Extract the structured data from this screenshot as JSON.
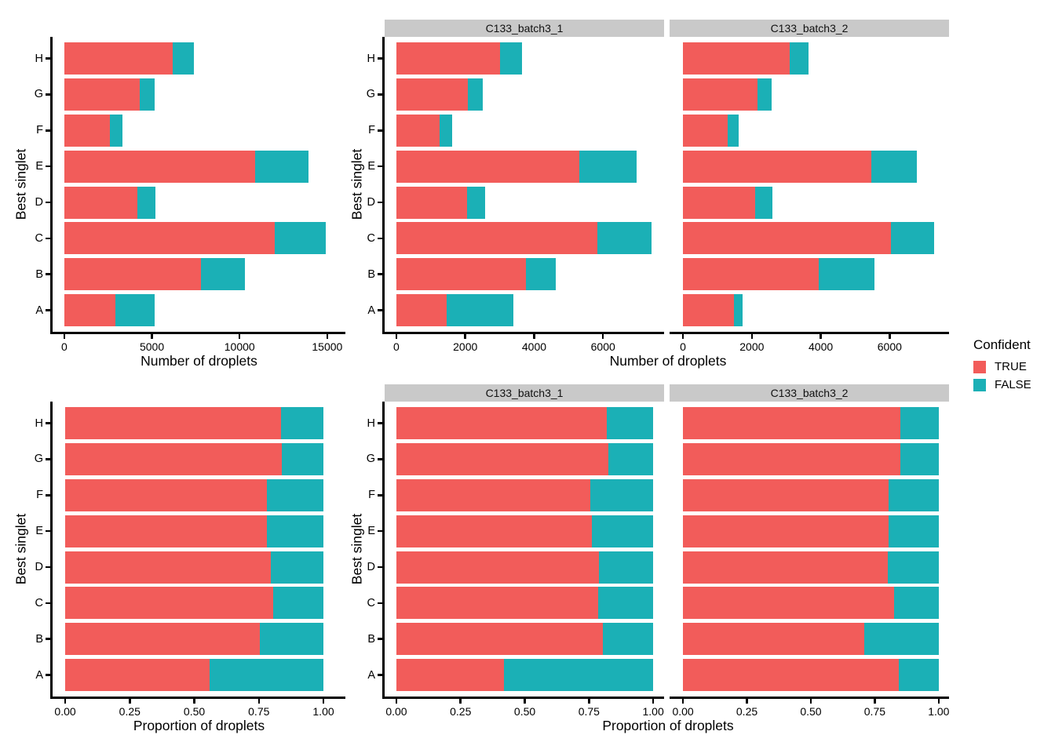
{
  "colors": {
    "true_fill": "#F25C5A",
    "false_fill": "#1BB0B6",
    "strip_bg": "#C9C9C9",
    "axis_line": "#000000",
    "text": "#000000",
    "background": "#ffffff"
  },
  "legend": {
    "title": "Confident",
    "items": [
      {
        "label": "TRUE",
        "color": "#F25C5A"
      },
      {
        "label": "FALSE",
        "color": "#1BB0B6"
      }
    ]
  },
  "chart_data": [
    {
      "id": "counts_overall",
      "type": "bar",
      "orientation": "horizontal",
      "stacked": true,
      "xlabel": "Number of droplets",
      "ylabel": "Best singlet",
      "legend_title": "Confident",
      "categories_top_to_bottom": [
        "H",
        "G",
        "F",
        "E",
        "D",
        "C",
        "B",
        "A"
      ],
      "xlim": [
        0,
        15650
      ],
      "x_ticks": [
        {
          "v": 0,
          "label": "0"
        },
        {
          "v": 5000,
          "label": "5000"
        },
        {
          "v": 10000,
          "label": "10000"
        },
        {
          "v": 15000,
          "label": "15000"
        }
      ],
      "series": [
        {
          "name": "TRUE",
          "values": [
            6200,
            4300,
            2600,
            10900,
            4150,
            12000,
            7800,
            2900
          ]
        },
        {
          "name": "FALSE",
          "values": [
            1200,
            850,
            700,
            3050,
            1050,
            2900,
            2500,
            2250
          ]
        }
      ]
    },
    {
      "id": "counts_by_sample",
      "type": "bar",
      "orientation": "horizontal",
      "stacked": true,
      "xlabel": "Number of droplets",
      "ylabel": "Best singlet",
      "legend_title": "Confident",
      "categories_top_to_bottom": [
        "H",
        "G",
        "F",
        "E",
        "D",
        "C",
        "B",
        "A"
      ],
      "xlim": [
        0,
        7770
      ],
      "x_ticks": [
        {
          "v": 0,
          "label": "0"
        },
        {
          "v": 2000,
          "label": "2000"
        },
        {
          "v": 4000,
          "label": "4000"
        },
        {
          "v": 6000,
          "label": "6000"
        }
      ],
      "facets": [
        {
          "label": "C133_batch3_1",
          "series": [
            {
              "name": "TRUE",
              "values": [
                3000,
                2080,
                1250,
                5320,
                2060,
                5840,
                3770,
                1450
              ]
            },
            {
              "name": "FALSE",
              "values": [
                650,
                430,
                370,
                1650,
                510,
                1560,
                860,
                1940
              ]
            }
          ]
        },
        {
          "label": "C133_batch3_2",
          "series": [
            {
              "name": "TRUE",
              "values": [
                3100,
                2170,
                1300,
                5470,
                2100,
                6040,
                3950,
                1470
              ]
            },
            {
              "name": "FALSE",
              "values": [
                550,
                400,
                320,
                1320,
                500,
                1260,
                1600,
                270
              ]
            }
          ]
        }
      ]
    },
    {
      "id": "proportions_overall",
      "type": "bar",
      "orientation": "horizontal",
      "stacked": true,
      "xlabel": "Proportion of droplets",
      "ylabel": "Best singlet",
      "legend_title": "Confident",
      "categories_top_to_bottom": [
        "H",
        "G",
        "F",
        "E",
        "D",
        "C",
        "B",
        "A"
      ],
      "xlim": [
        0,
        1.0
      ],
      "x_ticks": [
        {
          "v": 0,
          "label": "0.00"
        },
        {
          "v": 0.25,
          "label": "0.25"
        },
        {
          "v": 0.5,
          "label": "0.50"
        },
        {
          "v": 0.75,
          "label": "0.75"
        },
        {
          "v": 1.0,
          "label": "1.00"
        }
      ],
      "series": [
        {
          "name": "TRUE",
          "values": [
            0.835,
            0.84,
            0.78,
            0.78,
            0.795,
            0.805,
            0.755,
            0.56
          ]
        },
        {
          "name": "FALSE",
          "values": [
            0.165,
            0.16,
            0.22,
            0.22,
            0.205,
            0.195,
            0.245,
            0.44
          ]
        }
      ]
    },
    {
      "id": "proportions_by_sample",
      "type": "bar",
      "orientation": "horizontal",
      "stacked": true,
      "xlabel": "Proportion of droplets",
      "ylabel": "Best singlet",
      "legend_title": "Confident",
      "categories_top_to_bottom": [
        "H",
        "G",
        "F",
        "E",
        "D",
        "C",
        "B",
        "A"
      ],
      "xlim": [
        0,
        1.0
      ],
      "x_ticks": [
        {
          "v": 0,
          "label": "0.00"
        },
        {
          "v": 0.25,
          "label": "0.25"
        },
        {
          "v": 0.5,
          "label": "0.50"
        },
        {
          "v": 0.75,
          "label": "0.75"
        },
        {
          "v": 1.0,
          "label": "1.00"
        }
      ],
      "facets": [
        {
          "label": "C133_batch3_1",
          "series": [
            {
              "name": "TRUE",
              "values": [
                0.82,
                0.825,
                0.755,
                0.76,
                0.79,
                0.785,
                0.805,
                0.42
              ]
            },
            {
              "name": "FALSE",
              "values": [
                0.18,
                0.175,
                0.245,
                0.24,
                0.21,
                0.215,
                0.195,
                0.58
              ]
            }
          ]
        },
        {
          "label": "C133_batch3_2",
          "series": [
            {
              "name": "TRUE",
              "values": [
                0.85,
                0.85,
                0.805,
                0.805,
                0.8,
                0.825,
                0.71,
                0.845
              ]
            },
            {
              "name": "FALSE",
              "values": [
                0.15,
                0.15,
                0.195,
                0.195,
                0.2,
                0.175,
                0.29,
                0.155
              ]
            }
          ]
        }
      ]
    }
  ]
}
